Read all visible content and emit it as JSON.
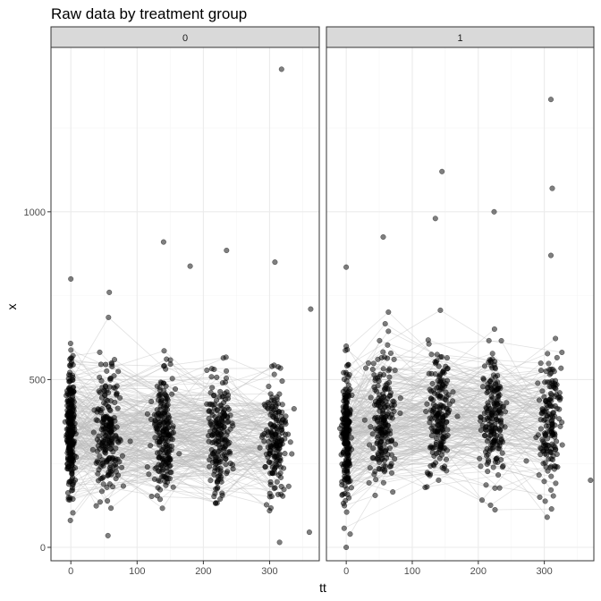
{
  "chart_data": {
    "type": "scatter",
    "title": "Raw data by treatment group",
    "xlabel": "tt",
    "ylabel": "x",
    "facets": [
      "0",
      "1"
    ],
    "xlim": [
      -30,
      375
    ],
    "ylim": [
      -40,
      1490
    ],
    "x_ticks": [
      0,
      100,
      200,
      300
    ],
    "x_tick_labels": [
      "0",
      "100",
      "200",
      "300"
    ],
    "y_ticks": [
      0,
      500,
      1000
    ],
    "y_tick_labels": [
      "0",
      "500",
      "1000"
    ],
    "grid": true,
    "lines_connect_subjects": true,
    "visit_times": [
      0,
      56,
      140,
      224,
      308
    ],
    "colors": {
      "point": "#000000",
      "line": "#bdbdbd",
      "strip_fill": "#d9d9d9",
      "panel_border": "#333333",
      "grid_major": "#ebebeb",
      "grid_minor": "#f5f5f5"
    },
    "highlight_points": [
      {
        "facet": "0",
        "x": 318,
        "y": 1425
      },
      {
        "facet": "0",
        "x": 140,
        "y": 910
      },
      {
        "facet": "0",
        "x": 235,
        "y": 885
      },
      {
        "facet": "0",
        "x": 308,
        "y": 850
      },
      {
        "facet": "0",
        "x": 180,
        "y": 838
      },
      {
        "facet": "0",
        "x": 0,
        "y": 800
      },
      {
        "facet": "0",
        "x": 58,
        "y": 760
      },
      {
        "facet": "0",
        "x": 362,
        "y": 710
      },
      {
        "facet": "0",
        "x": 315,
        "y": 15
      },
      {
        "facet": "0",
        "x": 56,
        "y": 35
      },
      {
        "facet": "0",
        "x": 360,
        "y": 45
      },
      {
        "facet": "1",
        "x": 310,
        "y": 1335
      },
      {
        "facet": "1",
        "x": 145,
        "y": 1120
      },
      {
        "facet": "1",
        "x": 312,
        "y": 1070
      },
      {
        "facet": "1",
        "x": 224,
        "y": 1000
      },
      {
        "facet": "1",
        "x": 135,
        "y": 980
      },
      {
        "facet": "1",
        "x": 56,
        "y": 925
      },
      {
        "facet": "1",
        "x": 310,
        "y": 870
      },
      {
        "facet": "1",
        "x": 0,
        "y": 835
      },
      {
        "facet": "1",
        "x": 0,
        "y": 0
      },
      {
        "facet": "1",
        "x": 370,
        "y": 200
      }
    ]
  }
}
